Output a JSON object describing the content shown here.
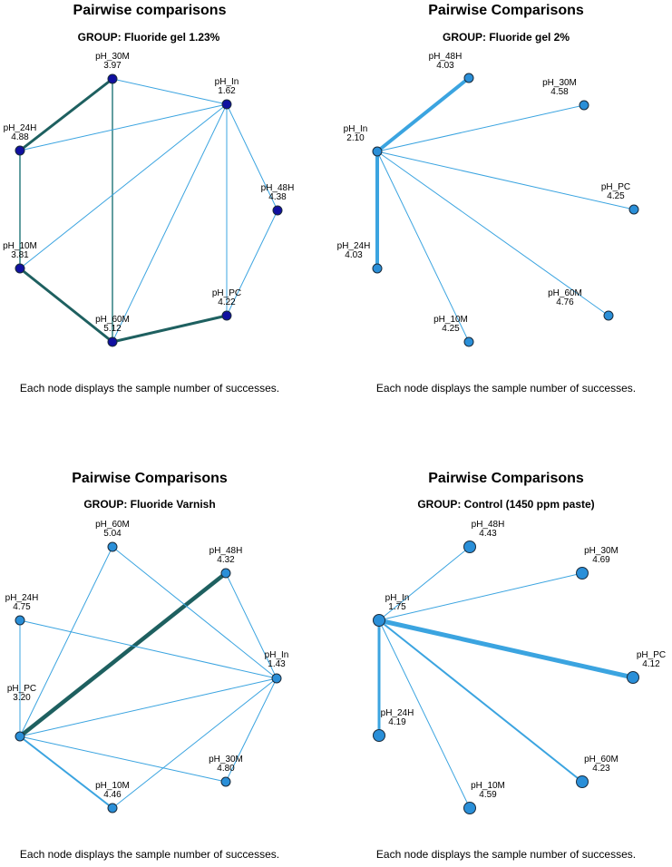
{
  "chart_data": [
    {
      "type": "network",
      "title": "Pairwise comparisons",
      "subtitle": "GROUP: Fluoride gel 1.23%",
      "footnote": "Each node displays the sample number of successes.",
      "edge_color": "#2f7f80",
      "heavy_edge_color": "#1e6060",
      "light_edge_color": "#3ba4e0",
      "node_fill": "#1010a0",
      "nodes": [
        {
          "id": "pH_30M",
          "name": "pH_30M",
          "value": "3.97"
        },
        {
          "id": "pH_In",
          "name": "pH_In",
          "value": "1.62"
        },
        {
          "id": "pH_24H",
          "name": "pH_24H",
          "value": "4.88"
        },
        {
          "id": "pH_48H",
          "name": "pH_48H",
          "value": "4.38"
        },
        {
          "id": "pH_10M",
          "name": "pH_10M",
          "value": "3.81"
        },
        {
          "id": "pH_PC",
          "name": "pH_PC",
          "value": "4.22"
        },
        {
          "id": "pH_60M",
          "name": "pH_60M",
          "value": "5.12"
        }
      ],
      "edges": [
        {
          "from": "pH_30M",
          "to": "pH_24H",
          "weight": 3
        },
        {
          "from": "pH_10M",
          "to": "pH_60M",
          "weight": 3
        },
        {
          "from": "pH_60M",
          "to": "pH_PC",
          "weight": 3
        },
        {
          "from": "pH_24H",
          "to": "pH_10M",
          "weight": 1.5
        },
        {
          "from": "pH_30M",
          "to": "pH_60M",
          "weight": 1.5
        },
        {
          "from": "pH_30M",
          "to": "pH_In",
          "weight": 1
        },
        {
          "from": "pH_24H",
          "to": "pH_In",
          "weight": 1
        },
        {
          "from": "pH_10M",
          "to": "pH_In",
          "weight": 1
        },
        {
          "from": "pH_60M",
          "to": "pH_In",
          "weight": 1
        },
        {
          "from": "pH_PC",
          "to": "pH_In",
          "weight": 1
        },
        {
          "from": "pH_48H",
          "to": "pH_In",
          "weight": 1
        },
        {
          "from": "pH_48H",
          "to": "pH_PC",
          "weight": 1
        }
      ]
    },
    {
      "type": "network",
      "title": "Pairwise Comparisons",
      "subtitle": "GROUP: Fluoride gel 2%",
      "footnote": "Each node displays the sample number of successes.",
      "edge_color": "#3ba4e0",
      "node_fill": "#2a8fd8",
      "nodes": [
        {
          "id": "pH_48H",
          "name": "pH_48H",
          "value": "4.03"
        },
        {
          "id": "pH_30M",
          "name": "pH_30M",
          "value": "4.58"
        },
        {
          "id": "pH_In",
          "name": "pH_In",
          "value": "2.10"
        },
        {
          "id": "pH_PC",
          "name": "pH_PC",
          "value": "4.25"
        },
        {
          "id": "pH_24H",
          "name": "pH_24H",
          "value": "4.03"
        },
        {
          "id": "pH_60M",
          "name": "pH_60M",
          "value": "4.76"
        },
        {
          "id": "pH_10M",
          "name": "pH_10M",
          "value": "4.25"
        }
      ],
      "edges": [
        {
          "from": "pH_In",
          "to": "pH_48H",
          "weight": 4
        },
        {
          "from": "pH_In",
          "to": "pH_24H",
          "weight": 4
        },
        {
          "from": "pH_In",
          "to": "pH_30M",
          "weight": 1
        },
        {
          "from": "pH_In",
          "to": "pH_PC",
          "weight": 1
        },
        {
          "from": "pH_In",
          "to": "pH_60M",
          "weight": 1
        },
        {
          "from": "pH_In",
          "to": "pH_10M",
          "weight": 1
        }
      ]
    },
    {
      "type": "network",
      "title": "Pairwise Comparisons",
      "subtitle": "GROUP: Fluoride Varnish",
      "footnote": "Each node displays the sample number of successes.",
      "edge_color": "#3ba4e0",
      "heavy_edge_color": "#1e6060",
      "node_fill": "#2a8fd8",
      "nodes": [
        {
          "id": "pH_60M",
          "name": "pH_60M",
          "value": "5.04"
        },
        {
          "id": "pH_48H",
          "name": "pH_48H",
          "value": "4.32"
        },
        {
          "id": "pH_24H",
          "name": "pH_24H",
          "value": "4.75"
        },
        {
          "id": "pH_In",
          "name": "pH_In",
          "value": "1.43"
        },
        {
          "id": "pH_PC",
          "name": "pH_PC",
          "value": "3.20"
        },
        {
          "id": "pH_30M",
          "name": "pH_30M",
          "value": "4.80"
        },
        {
          "id": "pH_10M",
          "name": "pH_10M",
          "value": "4.46"
        }
      ],
      "edges": [
        {
          "from": "pH_PC",
          "to": "pH_48H",
          "weight": 4.5
        },
        {
          "from": "pH_PC",
          "to": "pH_10M",
          "weight": 2
        },
        {
          "from": "pH_PC",
          "to": "pH_60M",
          "weight": 1
        },
        {
          "from": "pH_PC",
          "to": "pH_24H",
          "weight": 1
        },
        {
          "from": "pH_PC",
          "to": "pH_In",
          "weight": 1
        },
        {
          "from": "pH_PC",
          "to": "pH_30M",
          "weight": 1
        },
        {
          "from": "pH_24H",
          "to": "pH_In",
          "weight": 1
        },
        {
          "from": "pH_60M",
          "to": "pH_In",
          "weight": 1
        },
        {
          "from": "pH_48H",
          "to": "pH_In",
          "weight": 1
        },
        {
          "from": "pH_10M",
          "to": "pH_In",
          "weight": 1
        },
        {
          "from": "pH_30M",
          "to": "pH_In",
          "weight": 1
        }
      ]
    },
    {
      "type": "network",
      "title": "Pairwise Comparisons",
      "subtitle": "GROUP: Control (1450 ppm paste)",
      "footnote": "Each node displays the sample number of successes.",
      "edge_color": "#3ba4e0",
      "node_fill": "#2a8fd8",
      "nodes": [
        {
          "id": "pH_48H",
          "name": "pH_48H",
          "value": "4.43"
        },
        {
          "id": "pH_30M",
          "name": "pH_30M",
          "value": "4.69"
        },
        {
          "id": "pH_In",
          "name": "pH_In",
          "value": "1.75"
        },
        {
          "id": "pH_PC",
          "name": "pH_PC",
          "value": "4.12"
        },
        {
          "id": "pH_24H",
          "name": "pH_24H",
          "value": "4.19"
        },
        {
          "id": "pH_60M",
          "name": "pH_60M",
          "value": "4.23"
        },
        {
          "id": "pH_10M",
          "name": "pH_10M",
          "value": "4.59"
        }
      ],
      "edges": [
        {
          "from": "pH_In",
          "to": "pH_PC",
          "weight": 5
        },
        {
          "from": "pH_In",
          "to": "pH_24H",
          "weight": 3
        },
        {
          "from": "pH_In",
          "to": "pH_60M",
          "weight": 2
        },
        {
          "from": "pH_In",
          "to": "pH_48H",
          "weight": 1
        },
        {
          "from": "pH_In",
          "to": "pH_30M",
          "weight": 1
        },
        {
          "from": "pH_In",
          "to": "pH_10M",
          "weight": 1
        }
      ]
    }
  ]
}
